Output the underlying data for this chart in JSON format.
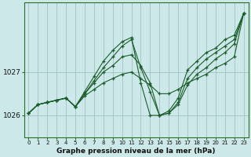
{
  "xlabel": "Graphe pression niveau de la mer (hPa)",
  "bg_color": "#cce8e8",
  "grid_color": "#99bbbb",
  "line_color": "#1a5c2a",
  "yticks": [
    1026,
    1027
  ],
  "xticks": [
    0,
    1,
    2,
    3,
    4,
    5,
    6,
    7,
    8,
    9,
    10,
    11,
    12,
    13,
    14,
    15,
    16,
    17,
    18,
    19,
    20,
    21,
    22,
    23
  ],
  "ymin": 1025.5,
  "ymax": 1028.6,
  "series": [
    [
      1026.05,
      1026.25,
      1026.3,
      1026.35,
      1026.4,
      1026.2,
      1026.45,
      1026.6,
      1026.75,
      1026.85,
      1026.95,
      1027.0,
      1026.85,
      1026.7,
      1026.5,
      1026.5,
      1026.6,
      1026.75,
      1026.85,
      1026.95,
      1027.1,
      1027.2,
      1027.35,
      1028.35
    ],
    [
      1026.05,
      1026.25,
      1026.3,
      1026.35,
      1026.4,
      1026.2,
      1026.5,
      1026.75,
      1027.0,
      1027.15,
      1027.35,
      1027.4,
      1027.15,
      1026.75,
      1026.0,
      1026.05,
      1026.25,
      1026.7,
      1026.95,
      1027.1,
      1027.3,
      1027.45,
      1027.65,
      1028.35
    ],
    [
      1026.05,
      1026.25,
      1026.3,
      1026.35,
      1026.4,
      1026.2,
      1026.5,
      1026.8,
      1027.1,
      1027.35,
      1027.6,
      1027.75,
      1027.1,
      1026.55,
      1026.0,
      1026.05,
      1026.3,
      1026.85,
      1027.1,
      1027.3,
      1027.45,
      1027.6,
      1027.75,
      1028.35
    ],
    [
      1026.05,
      1026.25,
      1026.3,
      1026.35,
      1026.4,
      1026.2,
      1026.55,
      1026.9,
      1027.25,
      1027.5,
      1027.7,
      1027.8,
      1026.75,
      1026.0,
      1026.0,
      1026.1,
      1026.4,
      1027.05,
      1027.25,
      1027.45,
      1027.55,
      1027.75,
      1027.85,
      1028.35
    ]
  ]
}
